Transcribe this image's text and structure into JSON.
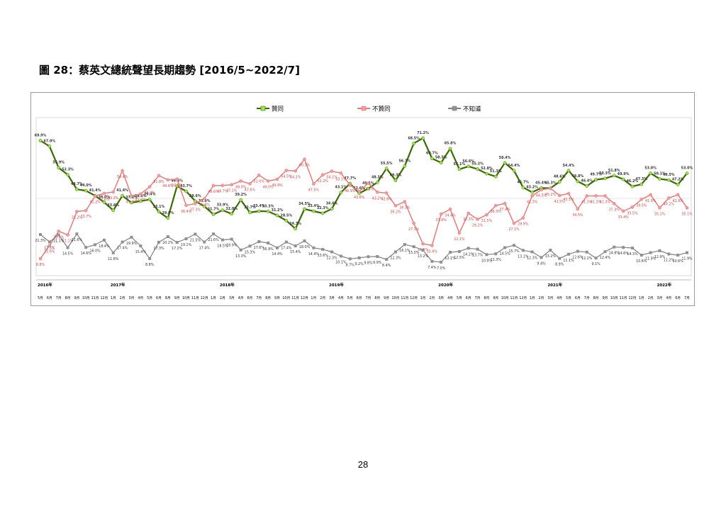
{
  "figure": {
    "title": "圖 28：蔡英文總統聲望長期趨勢  [2016/5~2022/7]",
    "page_number": "28"
  },
  "chart_data": {
    "type": "line",
    "title": "圖 28：蔡英文總統聲望長期趨勢  [2016/5~2022/7]",
    "xlabel": "",
    "ylabel": "",
    "ylim": [
      0,
      80
    ],
    "grid": true,
    "legend_position": "top",
    "year_labels": [
      {
        "index": 0,
        "label": "2016年"
      },
      {
        "index": 8,
        "label": "2017年"
      },
      {
        "index": 20,
        "label": "2018年"
      },
      {
        "index": 32,
        "label": "2019年"
      },
      {
        "index": 44,
        "label": "2020年"
      },
      {
        "index": 56,
        "label": "2021年"
      },
      {
        "index": 68,
        "label": "2022年"
      }
    ],
    "x": [
      "5月",
      "6月",
      "7月",
      "8月",
      "9月",
      "10月",
      "11月",
      "12月",
      "1月",
      "2月",
      "3月",
      "4月",
      "5月",
      "6月",
      "8月",
      "9月",
      "10月",
      "11月",
      "12月",
      "1月",
      "2月",
      "3月",
      "4月",
      "6月",
      "7月",
      "8月",
      "9月",
      "10月",
      "11月",
      "12月",
      "1月",
      "2月",
      "3月",
      "4月",
      "5月",
      "6月",
      "7月",
      "8月",
      "9月",
      "10月",
      "11月",
      "12月",
      "1月",
      "2月",
      "3月",
      "4月",
      "5月",
      "6月",
      "7月",
      "8月",
      "9月",
      "10月",
      "11月",
      "12月",
      "1月",
      "2月",
      "3月",
      "4月",
      "5月",
      "6月",
      "7月",
      "8月",
      "9月",
      "10月",
      "11月",
      "12月",
      "1月",
      "2月",
      "3月",
      "4月",
      "6月",
      "7月"
    ],
    "series": [
      {
        "name": "贊同",
        "color": "#3a6b00",
        "marker_color": "#9ee84a",
        "values": [
          69.9,
          67.0,
          55.9,
          52.3,
          44.7,
          44.0,
          41.4,
          38.0,
          33.8,
          41.4,
          37.8,
          38.6,
          39.4,
          33.1,
          29.8,
          46.4,
          43.7,
          38.6,
          35.9,
          31.7,
          33.9,
          32.0,
          39.2,
          32.7,
          33.4,
          33.3,
          31.2,
          28.5,
          24.3,
          34.5,
          33.4,
          32.3,
          34.6,
          43.1,
          47.7,
          42.6,
          45.1,
          48.3,
          55.5,
          49.3,
          56.7,
          68.5,
          71.2,
          60.7,
          58.5,
          65.8,
          55.1,
          56.6,
          55.2,
          52.8,
          51.3,
          58.4,
          54.4,
          45.7,
          43.2,
          45.4,
          45.3,
          48.6,
          54.4,
          48.8,
          46.4,
          49.7,
          50.3,
          51.8,
          49.9,
          46.2,
          47.3,
          53.0,
          50.1,
          49.5,
          47.2,
          53.0
        ]
      },
      {
        "name": "不贊同",
        "color": "#e37b7b",
        "marker_color": "#ee9c9c",
        "values": [
          8.8,
          15.6,
          23.0,
          21.1,
          33.2,
          33.7,
          41.2,
          42.6,
          43.3,
          54.4,
          41.3,
          42.3,
          46.0,
          51.8,
          49.6,
          50.0,
          36.4,
          37.3,
          39.8,
          46.6,
          46.7,
          47.1,
          49.0,
          47.6,
          52.0,
          49.0,
          49.9,
          54.5,
          54.2,
          60.3,
          47.5,
          52.2,
          54.1,
          53.1,
          46.9,
          43.6,
          47.9,
          43.2,
          42.8,
          36.2,
          38.3,
          27.1,
          16.5,
          15.6,
          31.9,
          34.4,
          22.1,
          32.3,
          29.2,
          31.5,
          36.3,
          37.4,
          27.1,
          29.9,
          41.3,
          44.5,
          45.2,
          41.5,
          42.5,
          34.5,
          41.3,
          41.3,
          41.3,
          37.3,
          33.4,
          35.5,
          39.5,
          41.9,
          35.1,
          40.2,
          41.9,
          35.1
        ]
      },
      {
        "name": "不知道",
        "color": "#7f7f7f",
        "marker_color": "#909090",
        "values": [
          21.3,
          17.5,
          21.1,
          14.5,
          21.6,
          14.6,
          16.0,
          18.4,
          11.8,
          17.4,
          19.9,
          15.4,
          8.8,
          17.3,
          20.2,
          17.2,
          19.1,
          21.5,
          17.4,
          21.6,
          18.5,
          18.9,
          13.3,
          15.3,
          17.6,
          16.9,
          14.4,
          17.4,
          15.4,
          18.0,
          14.4,
          13.6,
          12.3,
          10.1,
          8.7,
          9.2,
          9.8,
          9.9,
          8.4,
          12.3,
          16.1,
          15.0,
          13.2,
          7.4,
          7.0,
          12.1,
          12.5,
          14.2,
          13.7,
          10.9,
          11.3,
          14.5,
          15.7,
          13.1,
          12.3,
          9.4,
          13.2,
          8.9,
          11.1,
          12.6,
          12.2,
          9.1,
          12.4,
          14.8,
          14.6,
          14.3,
          10.6,
          11.9,
          12.9,
          11.2,
          10.6,
          11.9
        ]
      }
    ]
  }
}
